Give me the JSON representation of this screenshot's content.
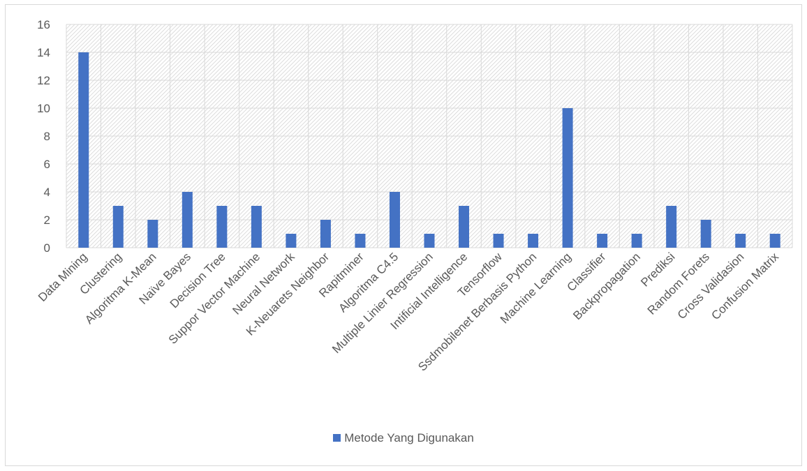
{
  "chart_data": {
    "type": "bar",
    "categories": [
      "Data Mining",
      "Clustering",
      "Algoritma K-Mean",
      "Naïve Bayes",
      "Decision Tree",
      "Suppor Vector Machine",
      "Neural Network",
      "K-Neuarets Neighbor",
      "Rapitminer",
      "Algoritma C4.5",
      "Multiple Linier Regression",
      "Intificial Intelligence",
      "Tensorflow",
      "Ssdmobilenet Berbasis Python",
      "Machine Learning",
      "Classifier",
      "Backpropagation",
      "Prediksi",
      "Random Forets",
      "Cross Validasion",
      "Confusion Matrix"
    ],
    "series": [
      {
        "name": "Metode Yang Digunakan",
        "values": [
          14,
          3,
          2,
          4,
          3,
          3,
          1,
          2,
          1,
          4,
          1,
          3,
          1,
          1,
          10,
          1,
          1,
          3,
          2,
          1,
          1
        ],
        "color": "#4472c4"
      }
    ],
    "ylim": [
      0,
      16
    ],
    "yticks": [
      0,
      2,
      4,
      6,
      8,
      10,
      12,
      14,
      16
    ],
    "grid": true,
    "legend_position": "bottom",
    "title": "",
    "xlabel": "",
    "ylabel": ""
  }
}
